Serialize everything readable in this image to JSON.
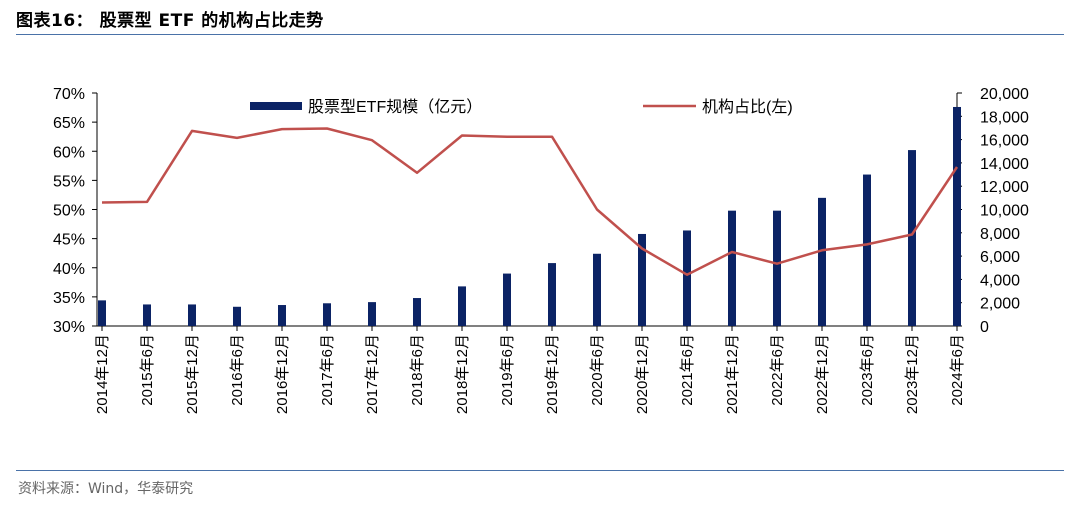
{
  "header": {
    "title": "图表16：  股票型 ETF 的机构占比走势"
  },
  "footer": {
    "source": "资料来源：Wind，华泰研究"
  },
  "chart_data": {
    "type": "bar+line",
    "categories": [
      "2014年12月",
      "2015年6月",
      "2015年12月",
      "2016年6月",
      "2016年12月",
      "2017年6月",
      "2017年12月",
      "2018年6月",
      "2018年12月",
      "2019年6月",
      "2019年12月",
      "2020年6月",
      "2020年12月",
      "2021年6月",
      "2021年12月",
      "2022年6月",
      "2022年12月",
      "2023年6月",
      "2023年12月",
      "2024年6月"
    ],
    "series": [
      {
        "name": "股票型ETF规模（亿元）",
        "type": "bar",
        "axis": "right",
        "color": "#0b2365",
        "values": [
          2200,
          1850,
          1850,
          1650,
          1800,
          1950,
          2050,
          2400,
          3400,
          4500,
          5400,
          6200,
          7900,
          8200,
          9900,
          9900,
          11000,
          13000,
          15100,
          18800
        ]
      },
      {
        "name": "机构占比(左)",
        "type": "line",
        "axis": "left",
        "color": "#c0504d",
        "values": [
          51.2,
          51.3,
          63.5,
          62.3,
          63.8,
          63.9,
          61.9,
          56.3,
          62.7,
          62.5,
          62.5,
          50.0,
          43.3,
          38.8,
          42.7,
          40.7,
          43.0,
          44.0,
          45.7,
          57.3
        ]
      }
    ],
    "left_axis": {
      "min": 30,
      "max": 70,
      "ticks": [
        "30%",
        "35%",
        "40%",
        "45%",
        "50%",
        "55%",
        "60%",
        "65%",
        "70%"
      ]
    },
    "right_axis": {
      "min": 0,
      "max": 20000,
      "ticks": [
        "0",
        "2,000",
        "4,000",
        "6,000",
        "8,000",
        "10,000",
        "12,000",
        "14,000",
        "16,000",
        "18,000",
        "20,000"
      ]
    },
    "legend": "top"
  }
}
